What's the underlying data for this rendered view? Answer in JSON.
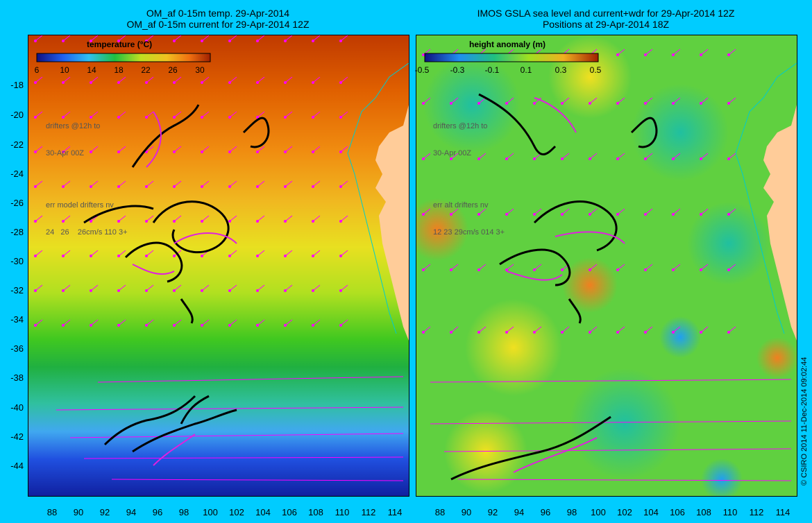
{
  "left": {
    "title_line1": "OM_af 0-15m temp. 29-Apr-2014",
    "title_line2": "OM_af 0-15m current for 29-Apr-2014 12Z",
    "colorbar_title": "temperature (°C)",
    "colorbar_ticks": [
      "6",
      "10",
      "14",
      "18",
      "22",
      "26",
      "30"
    ],
    "legend_line1": "drifters @12h to",
    "legend_line2": "30-Apr 00Z",
    "legend_line3": "err model drifters nv",
    "legend_line4": "24   26    26cm/s 110 3+"
  },
  "right": {
    "title_line1": "IMOS GSLA sea level and current+wdr for 29-Apr-2014 12Z",
    "title_line2": "Positions at 29-Apr-2014 18Z",
    "colorbar_title": "height anomaly  (m)",
    "colorbar_ticks": [
      "-0.5",
      "-0.3",
      "-0.1",
      "0.1",
      "0.3",
      "0.5"
    ],
    "legend_line1": "drifters @12h to",
    "legend_line2": "30-Apr 00Z",
    "legend_line3": "err alt drifters nv",
    "legend_line4": "12 23 29cm/s 014 3+"
  },
  "y_ticks": [
    "-18",
    "-20",
    "-22",
    "-24",
    "-26",
    "-28",
    "-30",
    "-32",
    "-34",
    "-36",
    "-38",
    "-40",
    "-42",
    "-44"
  ],
  "x_ticks": [
    "88",
    "90",
    "92",
    "94",
    "96",
    "98",
    "100",
    "102",
    "104",
    "106",
    "108",
    "110",
    "112",
    "114"
  ],
  "copyright": "© CSIRO 2014   11-Dec-2014 09:02:44",
  "colors": {
    "background": "#00ccff",
    "vector": "#ff00ff",
    "drifter": "#000000",
    "land": "#ffcc99",
    "coast": "#00cccc"
  }
}
